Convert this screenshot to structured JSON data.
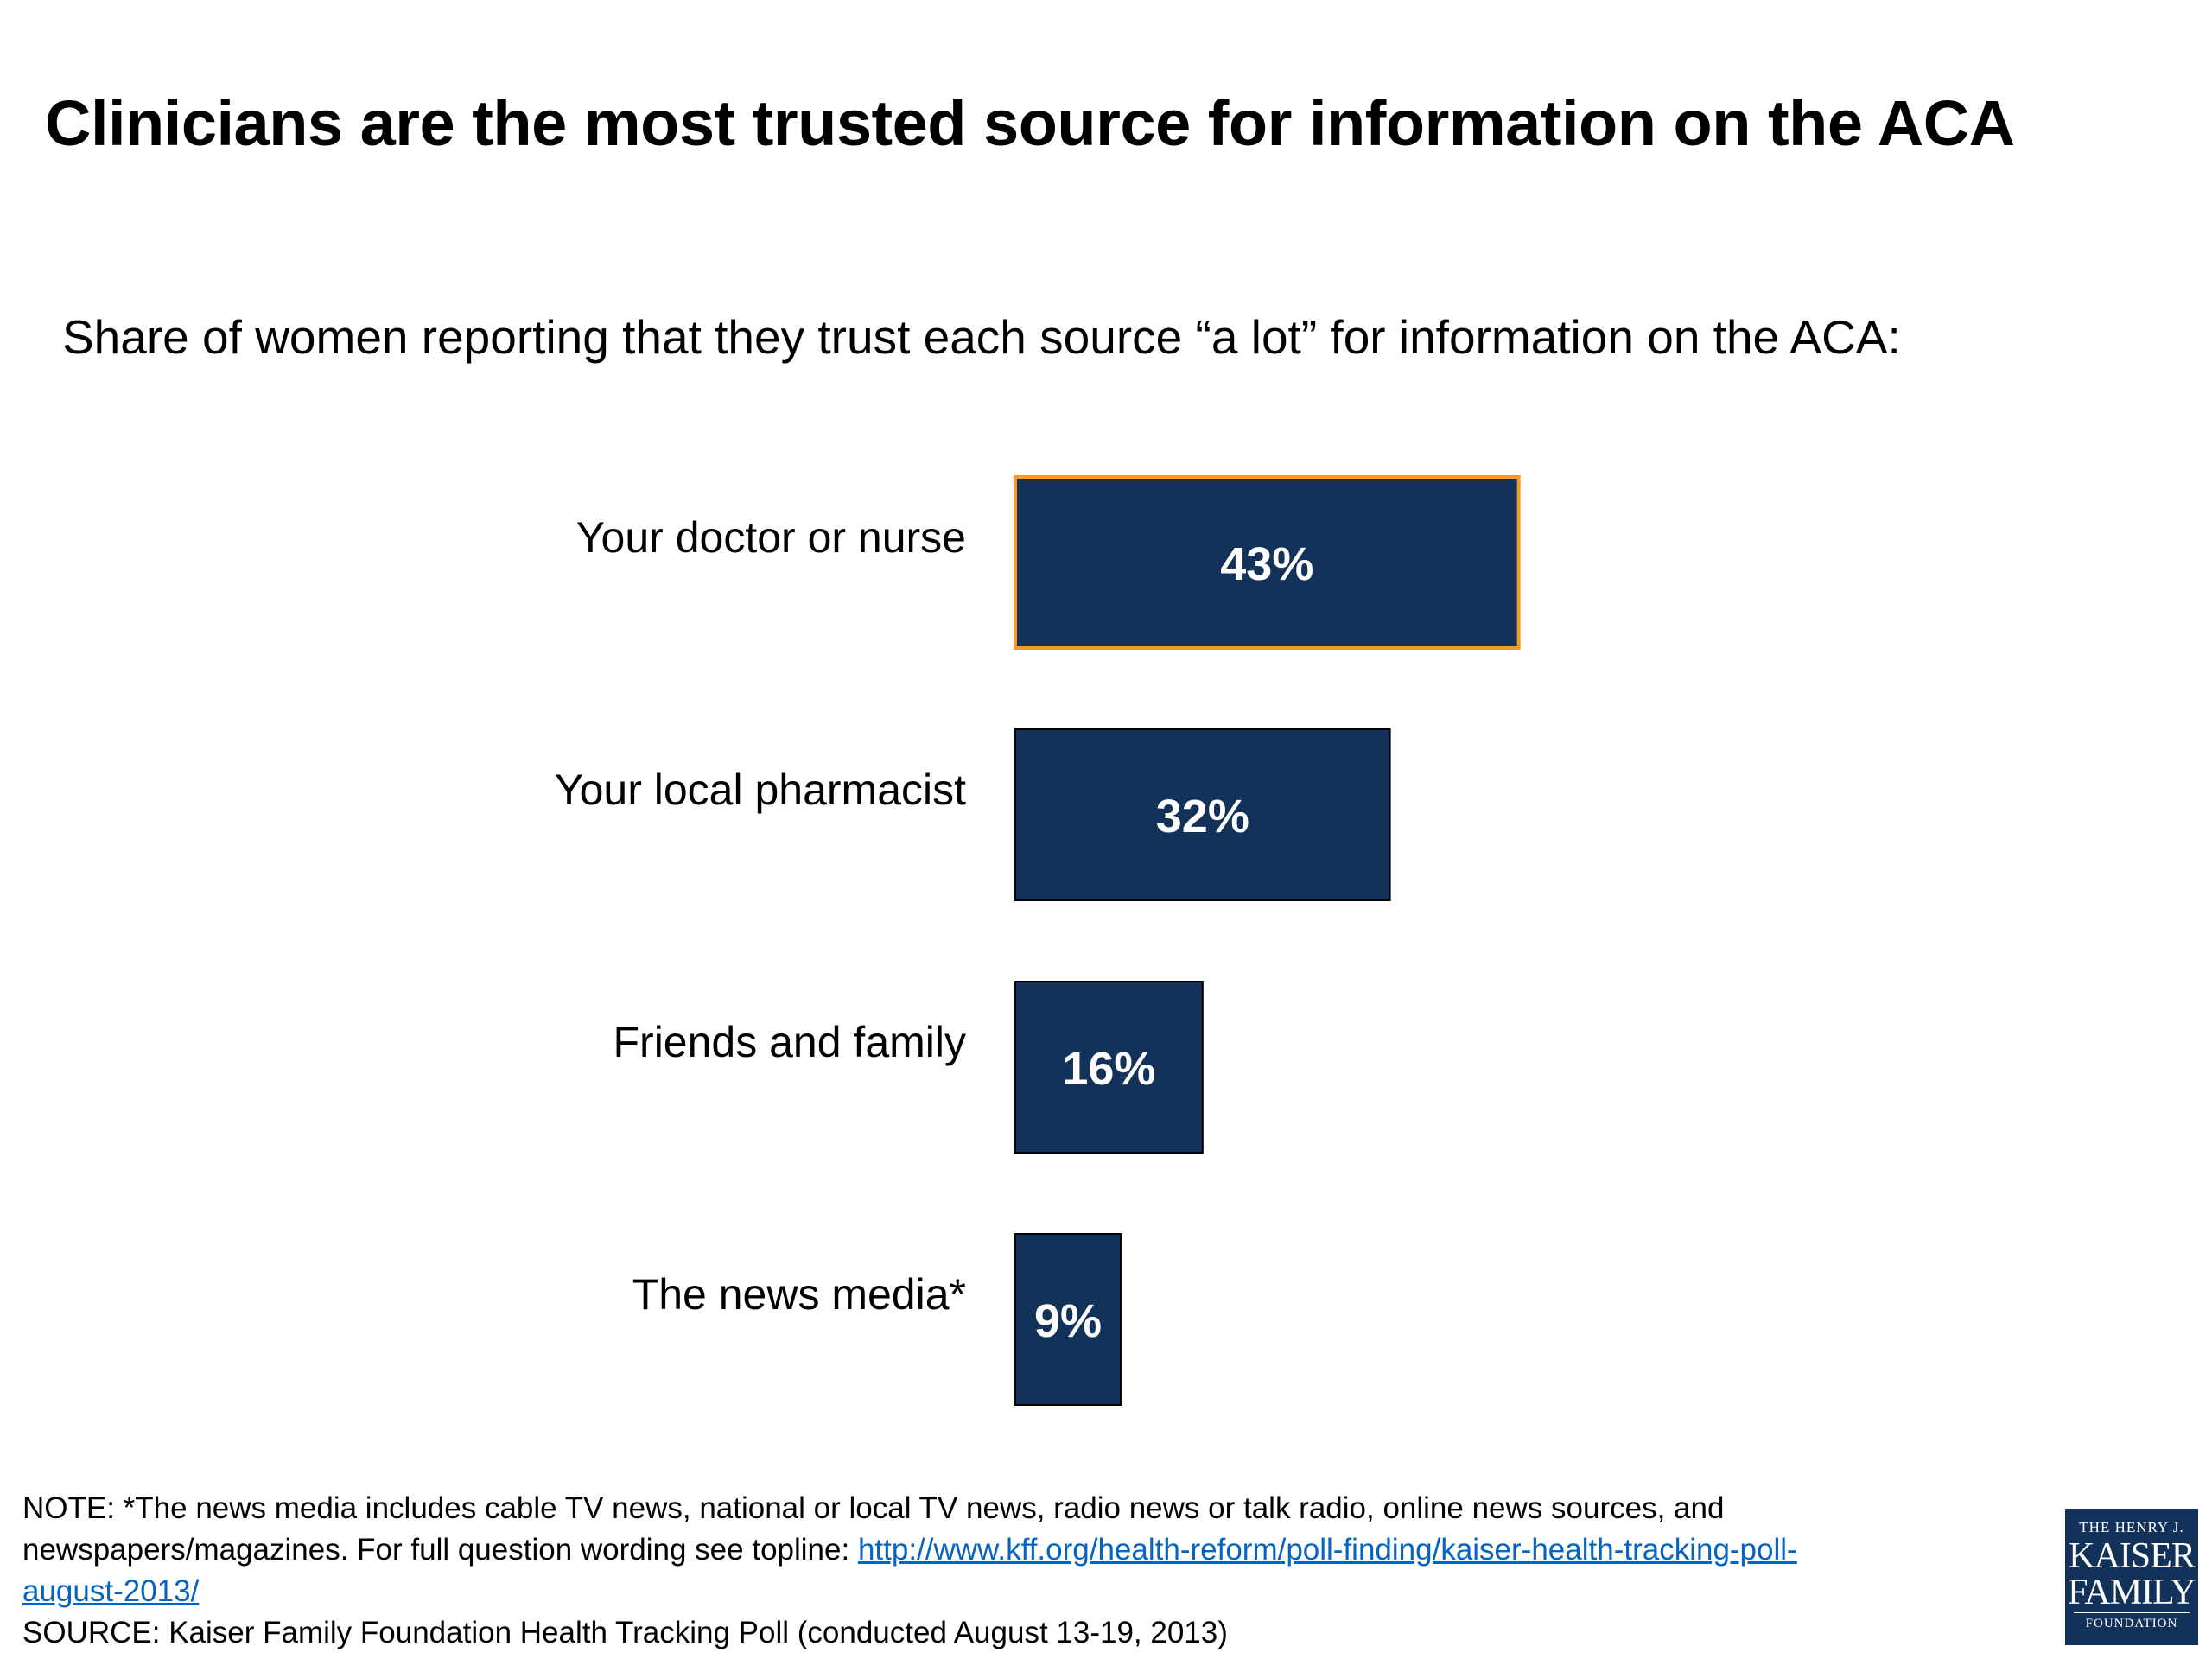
{
  "chart_data": {
    "type": "bar",
    "orientation": "horizontal",
    "title": "Clinicians are the most trusted source for information on the ACA",
    "subtitle": "Share of women reporting that they trust each source “a lot” for information on the ACA:",
    "categories": [
      "Your doctor or nurse",
      "Your local pharmacist",
      "Friends and family",
      "The news media*"
    ],
    "values": [
      43,
      32,
      16,
      9
    ],
    "value_labels": [
      "43%",
      "32%",
      "16%",
      "9%"
    ],
    "highlighted_index": 0,
    "xlim": [
      0,
      100
    ],
    "grid": false,
    "colors": {
      "bar": "#13325a",
      "highlight_outline": "#f39a2b",
      "label_text": "#ffffff"
    }
  },
  "footnote": {
    "note_line1": "NOTE: *The news media includes cable TV news, national or local TV news, radio news or talk radio, online news sources, and",
    "note_line2_prefix": "newspapers/magazines. For full question wording see topline: ",
    "link_part1": "http://www.kff.org/health-reform/poll-finding/kaiser-health-tracking-poll-",
    "link_part2": "august-2013/",
    "source": "SOURCE: Kaiser Family Foundation Health Tracking Poll (conducted August 13-19, 2013)"
  },
  "logo": {
    "line1": "THE HENRY J.",
    "line2": "KAISER",
    "line3": "FAMILY",
    "line4": "FOUNDATION"
  }
}
